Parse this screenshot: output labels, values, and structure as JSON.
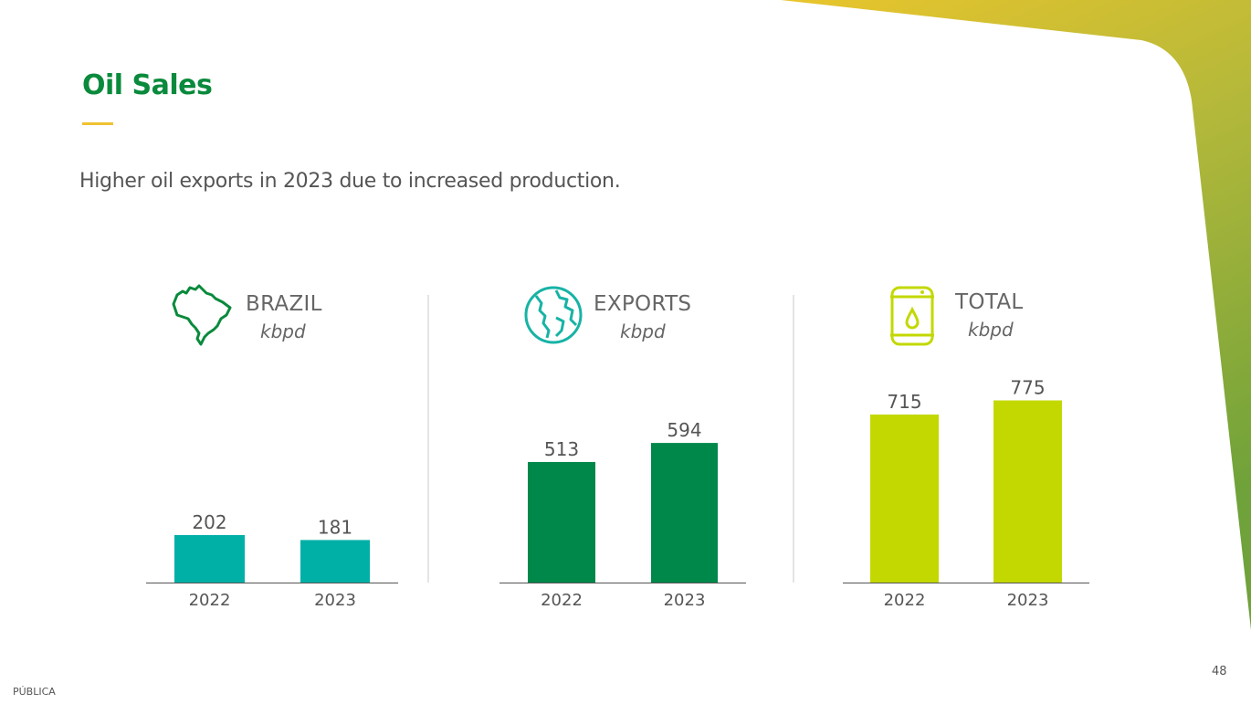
{
  "slide": {
    "title": "Oil Sales",
    "subtitle": "Higher oil exports in 2023 due to increased production.",
    "classification": "PÚBLICA",
    "page_number": "48"
  },
  "colors": {
    "title": "#0a8a3c",
    "accent": "#f1c232",
    "brazil_bar": "#00b0a7",
    "exports_bar": "#00884a",
    "total_bar": "#c3d800"
  },
  "panels": [
    {
      "title": "BRAZIL",
      "unit": "kbpd",
      "icon": "brazil-map-icon"
    },
    {
      "title": "EXPORTS",
      "unit": "kbpd",
      "icon": "globe-icon"
    },
    {
      "title": "TOTAL",
      "unit": "kbpd",
      "icon": "oil-barrel-icon"
    }
  ],
  "chart_data": [
    {
      "type": "bar",
      "title": "BRAZIL",
      "ylabel": "kbpd",
      "categories": [
        "2022",
        "2023"
      ],
      "values": [
        202,
        181
      ],
      "color": "#00b0a7"
    },
    {
      "type": "bar",
      "title": "EXPORTS",
      "ylabel": "kbpd",
      "categories": [
        "2022",
        "2023"
      ],
      "values": [
        513,
        594
      ],
      "color": "#00884a"
    },
    {
      "type": "bar",
      "title": "TOTAL",
      "ylabel": "kbpd",
      "categories": [
        "2022",
        "2023"
      ],
      "values": [
        715,
        775
      ],
      "color": "#c3d800"
    }
  ]
}
